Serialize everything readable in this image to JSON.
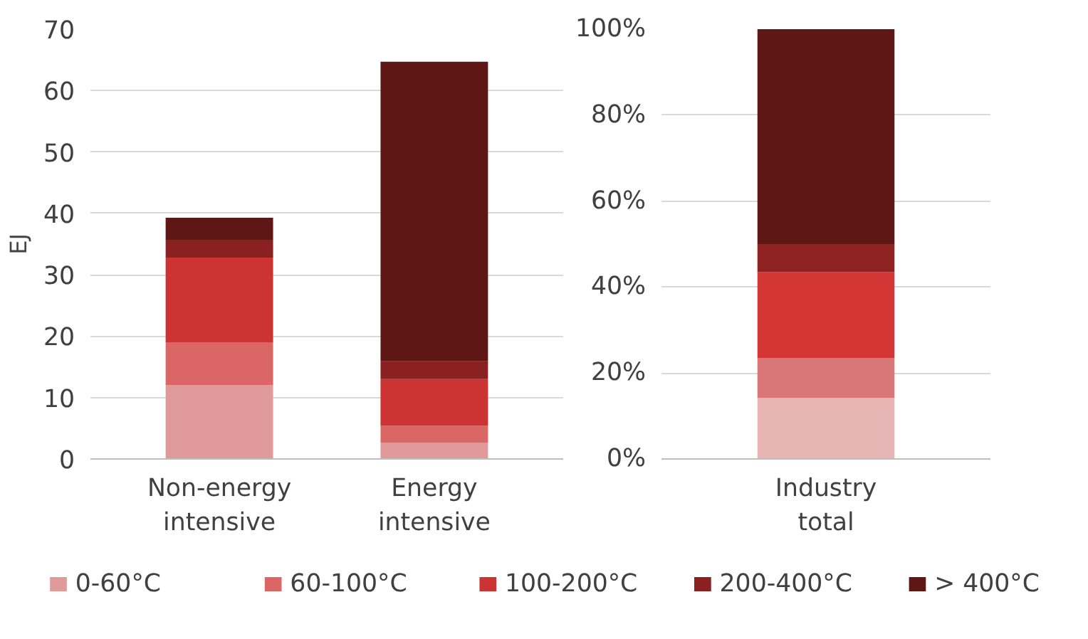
{
  "chart_data": [
    {
      "type": "bar",
      "stacked": true,
      "ylabel": "EJ",
      "categories": [
        "Non-energy intensive",
        "Energy intensive"
      ],
      "ylim": [
        0,
        70
      ],
      "yticks": [
        0,
        10,
        20,
        30,
        40,
        50,
        60,
        70
      ],
      "grid": "y",
      "legend": "bottom",
      "series": [
        {
          "name": "0-60°C",
          "color": "#e09a9a",
          "values": [
            12,
            2.6
          ]
        },
        {
          "name": "60-100°C",
          "color": "#db6666",
          "values": [
            7,
            2.8
          ]
        },
        {
          "name": "100-200°C",
          "color": "#cc3333",
          "values": [
            13.8,
            7.6
          ]
        },
        {
          "name": "200-400°C",
          "color": "#8b2020",
          "values": [
            2.9,
            2.9
          ]
        },
        {
          "name": "> 400°C",
          "color": "#5f1716",
          "values": [
            3.6,
            48.8
          ]
        }
      ]
    },
    {
      "type": "bar",
      "stacked": true,
      "categories": [
        "Industry total"
      ],
      "ylim": [
        0,
        100
      ],
      "yticks": [
        {
          "value": 0,
          "label": "0%"
        },
        {
          "value": 20,
          "label": "20%"
        },
        {
          "value": 40,
          "label": "40%"
        },
        {
          "value": 60,
          "label": "60%"
        },
        {
          "value": 80,
          "label": "80%"
        },
        {
          "value": 100,
          "label": "100%"
        }
      ],
      "grid": "y",
      "series": [
        {
          "color": "#e8b5b5",
          "values": [
            14.2
          ]
        },
        {
          "color": "#d87575",
          "values": [
            9.3
          ]
        },
        {
          "color": "#d43535",
          "values": [
            20
          ]
        },
        {
          "color": "#8e2121",
          "values": [
            6.5
          ]
        },
        {
          "color": "#5f1716",
          "values": [
            50
          ]
        }
      ]
    }
  ]
}
